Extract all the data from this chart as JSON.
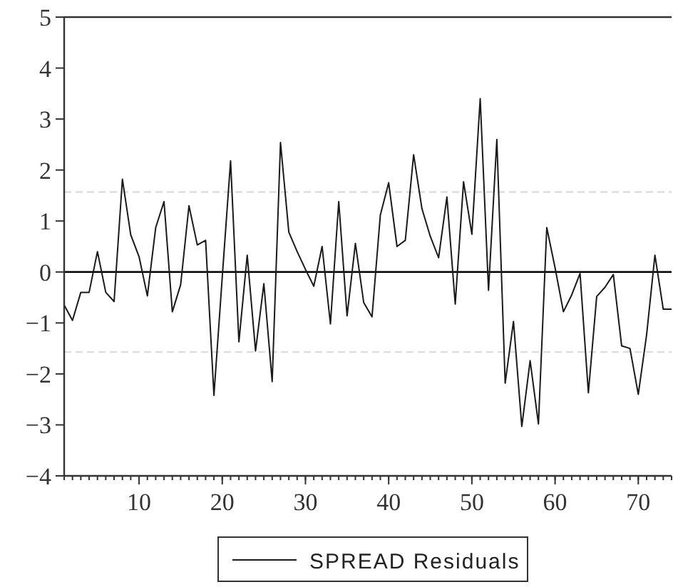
{
  "chart_data": {
    "type": "line",
    "x": [
      1,
      2,
      3,
      4,
      5,
      6,
      7,
      8,
      9,
      10,
      11,
      12,
      13,
      14,
      15,
      16,
      17,
      18,
      19,
      20,
      21,
      22,
      23,
      24,
      25,
      26,
      27,
      28,
      29,
      30,
      31,
      32,
      33,
      34,
      35,
      36,
      37,
      38,
      39,
      40,
      41,
      42,
      43,
      44,
      45,
      46,
      47,
      48,
      49,
      50,
      51,
      52,
      53,
      54,
      55,
      56,
      57,
      58,
      59,
      60,
      61,
      62,
      63,
      64,
      65,
      66,
      67,
      68,
      69,
      70,
      71,
      72,
      73,
      74
    ],
    "series": [
      {
        "name": "SPREAD Residuals",
        "color": "#1a1a1a",
        "values": [
          -0.65,
          -0.95,
          -0.4,
          -0.4,
          0.4,
          -0.4,
          -0.58,
          1.82,
          0.73,
          0.3,
          -0.47,
          0.87,
          1.38,
          -0.78,
          -0.25,
          1.3,
          0.53,
          0.62,
          -2.42,
          -0.1,
          2.18,
          -1.37,
          0.33,
          -1.55,
          -0.23,
          -2.15,
          2.54,
          0.78,
          0.4,
          0.05,
          -0.28,
          0.5,
          -1.02,
          1.38,
          -0.86,
          0.56,
          -0.6,
          -0.88,
          1.12,
          1.75,
          0.5,
          0.62,
          2.3,
          1.24,
          0.7,
          0.28,
          1.47,
          -0.63,
          1.77,
          0.74,
          3.4,
          -0.36,
          2.6,
          -2.18,
          -0.97,
          -3.03,
          -1.74,
          -2.98,
          0.87,
          0.08,
          -0.78,
          -0.45,
          -0.03,
          -2.37,
          -0.48,
          -0.3,
          -0.05,
          -1.45,
          -1.5,
          -2.4,
          -1.23,
          0.33,
          -0.73,
          -0.73
        ]
      }
    ],
    "xlim": [
      1,
      74
    ],
    "xticks": [
      10,
      20,
      30,
      40,
      50,
      60,
      70
    ],
    "ylim": [
      -4,
      5
    ],
    "yticks": [
      -4,
      -3,
      -2,
      -1,
      0,
      1,
      2,
      3,
      4,
      5
    ],
    "ref_lines": [
      {
        "axis": "y",
        "value": 0,
        "color": "#000000",
        "line_style": "solid"
      },
      {
        "axis": "y",
        "value": 1.57,
        "color": "#dddddd",
        "line_style": "dashed"
      },
      {
        "axis": "y",
        "value": -1.57,
        "color": "#dddddd",
        "line_style": "dashed"
      }
    ],
    "legend": "bottom",
    "grid": false,
    "line_style": "solid"
  }
}
